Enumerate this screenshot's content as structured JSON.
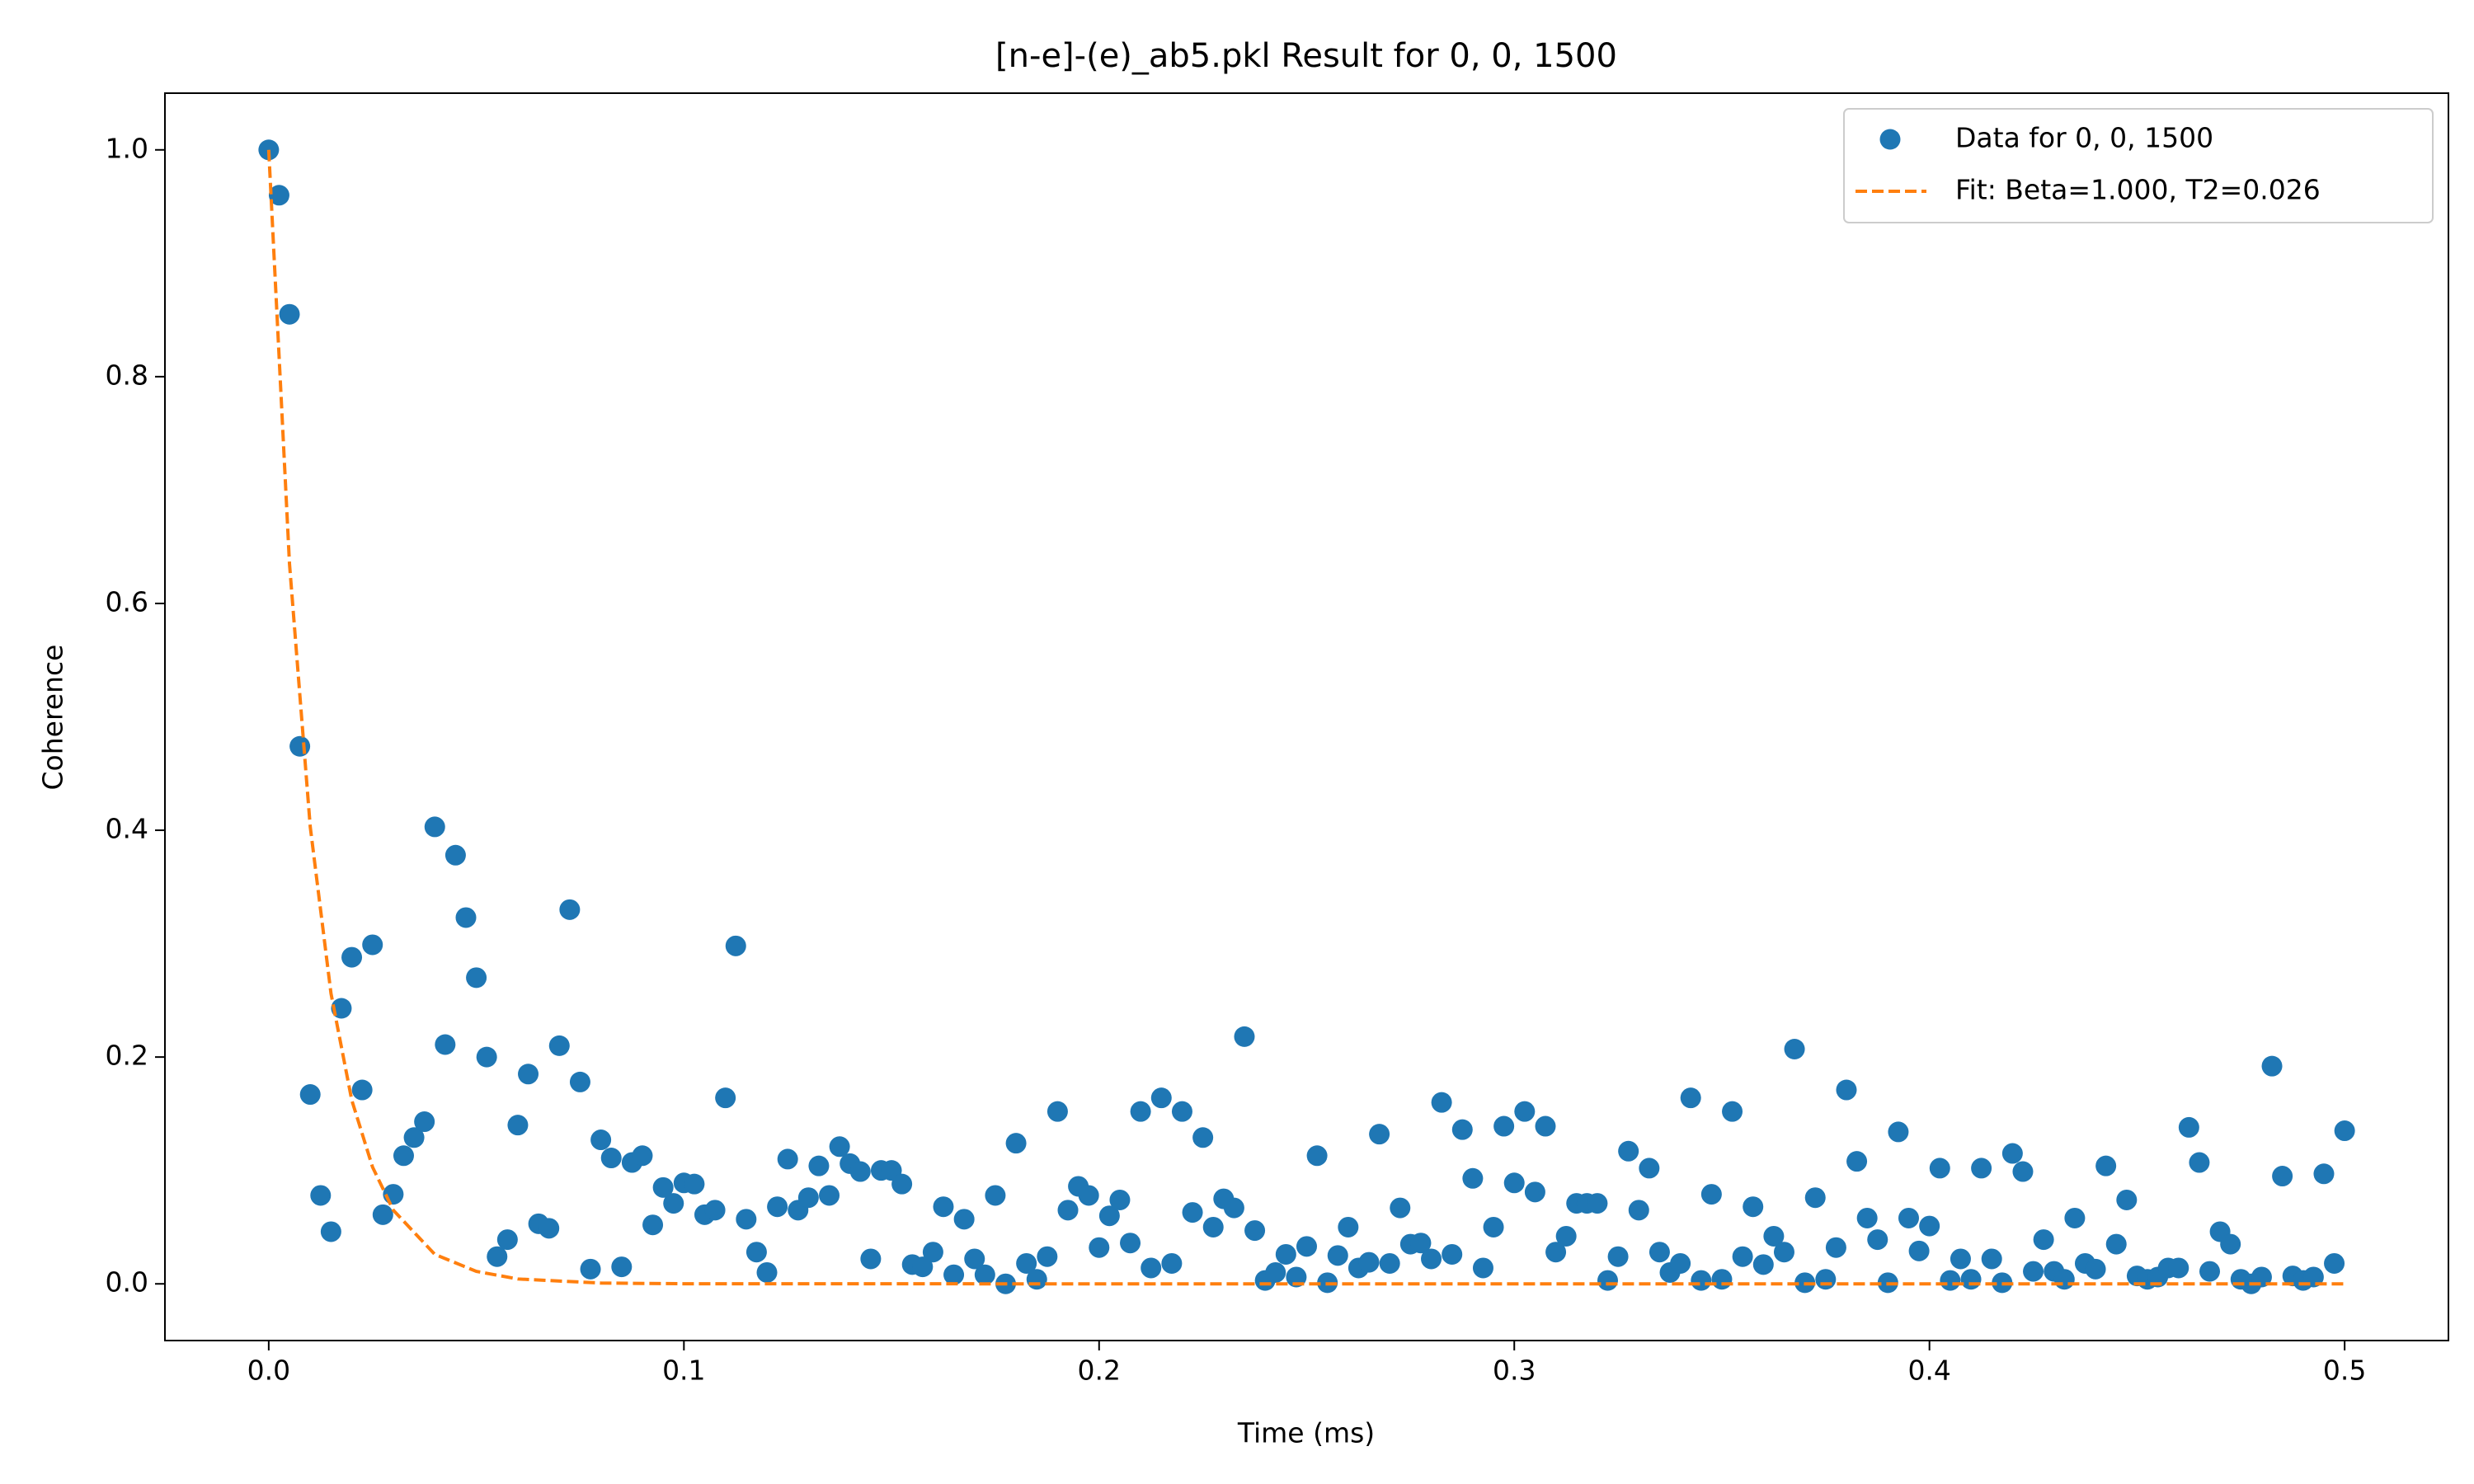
{
  "chart_data": {
    "type": "scatter",
    "title": "[n-e]-(e)_ab5.pkl Result for 0, 0, 1500",
    "xlabel": "Time (ms)",
    "ylabel": "Coherence",
    "xlim": [
      -0.025,
      0.525
    ],
    "ylim": [
      -0.05,
      1.05
    ],
    "xticks": [
      {
        "value": 0,
        "label": "0.0"
      },
      0.1,
      0.2,
      0.3,
      0.4,
      0.5
    ],
    "yticks": [
      {
        "value": 0,
        "label": "0.0"
      },
      0.2,
      0.4,
      0.6,
      0.8,
      {
        "value": 1,
        "label": "1.0"
      }
    ],
    "legend": "upper right",
    "series": [
      {
        "name": "Data for 0, 0, 1500",
        "color": "#1f77b4",
        "type": "scatter",
        "x": [
          0,
          0.0025,
          0.005,
          0.0075,
          0.01,
          0.0125,
          0.015,
          0.0175,
          0.02,
          0.0225,
          0.025,
          0.0275,
          0.03,
          0.0325,
          0.035,
          0.0375,
          0.04,
          0.0425,
          0.045,
          0.0475,
          0.05,
          0.0525,
          0.055,
          0.0575,
          0.06,
          0.0625,
          0.065,
          0.0675,
          0.07,
          0.0725,
          0.075,
          0.0775,
          0.08,
          0.0825,
          0.085,
          0.0875,
          0.09,
          0.0925,
          0.095,
          0.0975,
          0.1,
          0.1025,
          0.105,
          0.1075,
          0.11,
          0.1125,
          0.115,
          0.1175,
          0.12,
          0.1225,
          0.125,
          0.1275,
          0.13,
          0.1325,
          0.135,
          0.1375,
          0.14,
          0.1425,
          0.145,
          0.1475,
          0.15,
          0.1525,
          0.155,
          0.1575,
          0.16,
          0.1625,
          0.165,
          0.1675,
          0.17,
          0.1725,
          0.175,
          0.1775,
          0.18,
          0.1825,
          0.185,
          0.1875,
          0.19,
          0.1925,
          0.195,
          0.1975,
          0.2,
          0.2025,
          0.205,
          0.2075,
          0.21,
          0.2125,
          0.215,
          0.2175,
          0.22,
          0.2225,
          0.225,
          0.2275,
          0.23,
          0.2325,
          0.235,
          0.2375,
          0.24,
          0.2425,
          0.245,
          0.2475,
          0.25,
          0.2525,
          0.255,
          0.2575,
          0.26,
          0.2625,
          0.265,
          0.2675,
          0.27,
          0.2725,
          0.275,
          0.2775,
          0.28,
          0.2825,
          0.285,
          0.2875,
          0.29,
          0.2925,
          0.295,
          0.2975,
          0.3,
          0.3025,
          0.305,
          0.3075,
          0.31,
          0.3125,
          0.315,
          0.3175,
          0.32,
          0.3225,
          0.325,
          0.3275,
          0.33,
          0.3325,
          0.335,
          0.3375,
          0.34,
          0.3425,
          0.345,
          0.3475,
          0.35,
          0.3525,
          0.355,
          0.3575,
          0.36,
          0.3625,
          0.365,
          0.3675,
          0.37,
          0.3725,
          0.375,
          0.3775,
          0.38,
          0.3825,
          0.385,
          0.3875,
          0.39,
          0.3925,
          0.395,
          0.3975,
          0.4,
          0.4025,
          0.405,
          0.4075,
          0.41,
          0.4125,
          0.415,
          0.4175,
          0.42,
          0.4225,
          0.425,
          0.4275,
          0.43,
          0.4325,
          0.435,
          0.4375,
          0.44,
          0.4425,
          0.445,
          0.4475,
          0.45,
          0.4525,
          0.455,
          0.4575,
          0.46,
          0.4625,
          0.465,
          0.4675,
          0.47,
          0.4725,
          0.475,
          0.4775,
          0.48,
          0.4825,
          0.485,
          0.4875,
          0.49,
          0.4925,
          0.495,
          0.4975,
          0.5
        ],
        "values": [
          1.0,
          0.96,
          0.855,
          0.474,
          0.167,
          0.078,
          0.046,
          0.243,
          0.288,
          0.171,
          0.299,
          0.061,
          0.079,
          0.113,
          0.129,
          0.143,
          0.403,
          0.211,
          0.378,
          0.323,
          0.27,
          0.2,
          0.024,
          0.039,
          0.14,
          0.185,
          0.053,
          0.049,
          0.21,
          0.33,
          0.178,
          0.013,
          0.127,
          0.111,
          0.015,
          0.107,
          0.113,
          0.052,
          0.085,
          0.071,
          0.089,
          0.088,
          0.061,
          0.065,
          0.164,
          0.298,
          0.057,
          0.028,
          0.01,
          0.068,
          0.11,
          0.065,
          0.076,
          0.104,
          0.078,
          0.121,
          0.106,
          0.099,
          0.022,
          0.1,
          0.1,
          0.088,
          0.017,
          0.015,
          0.028,
          0.068,
          0.008,
          0.057,
          0.022,
          0.008,
          0.078,
          0.0,
          0.124,
          0.018,
          0.004,
          0.024,
          0.152,
          0.065,
          0.086,
          0.078,
          0.032,
          0.06,
          0.074,
          0.036,
          0.152,
          0.014,
          0.164,
          0.018,
          0.152,
          0.063,
          0.129,
          0.05,
          0.075,
          0.067,
          0.218,
          0.047,
          0.003,
          0.01,
          0.026,
          0.006,
          0.033,
          0.113,
          0.001,
          0.025,
          0.05,
          0.014,
          0.019,
          0.132,
          0.018,
          0.067,
          0.035,
          0.036,
          0.022,
          0.16,
          0.026,
          0.136,
          0.093,
          0.014,
          0.05,
          0.139,
          0.089,
          0.152,
          0.081,
          0.139,
          0.028,
          0.042,
          0.071,
          0.071,
          0.071,
          0.003,
          0.024,
          0.117,
          0.065,
          0.102,
          0.028,
          0.01,
          0.018,
          0.164,
          0.003,
          0.079,
          0.004,
          0.152,
          0.024,
          0.068,
          0.017,
          0.042,
          0.028,
          0.207,
          0.001,
          0.076,
          0.004,
          0.032,
          0.171,
          0.108,
          0.058,
          0.039,
          0.001,
          0.134,
          0.058,
          0.029,
          0.051,
          0.102,
          0.003,
          0.022,
          0.004,
          0.102,
          0.022,
          0.001,
          0.115,
          0.099,
          0.011,
          0.039,
          0.011,
          0.004,
          0.058,
          0.018,
          0.013,
          0.104,
          0.035,
          0.074,
          0.007,
          0.004,
          0.006,
          0.014,
          0.014,
          0.138,
          0.107,
          0.011,
          0.046,
          0.035,
          0.004,
          0.0,
          0.006,
          0.192,
          0.095,
          0.007,
          0.003,
          0.006,
          0.097,
          0.018,
          0.135
        ]
      },
      {
        "name": "Fit: Beta=1.000, T2=0.026",
        "color": "#ff7f0e",
        "type": "line",
        "style": "dashed",
        "x": [
          0,
          0.005,
          0.01,
          0.015,
          0.02,
          0.025,
          0.03,
          0.04,
          0.05,
          0.06,
          0.08,
          0.1,
          0.2,
          0.3,
          0.4,
          0.5
        ],
        "values": [
          1,
          0.635,
          0.403,
          0.256,
          0.162,
          0.103,
          0.065,
          0.026,
          0.011,
          0.0043,
          0.0007,
          0.0001,
          0,
          0,
          0,
          0
        ]
      }
    ]
  }
}
